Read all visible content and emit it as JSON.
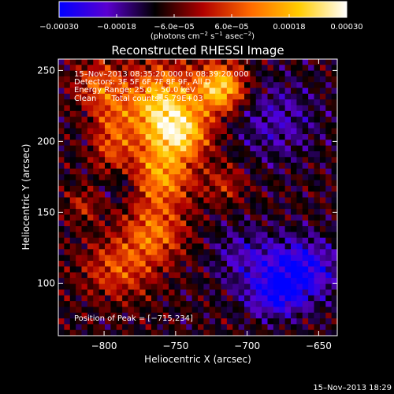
{
  "chart_data": {
    "type": "heatmap",
    "title": "Reconstructed RHESSI Image",
    "xlabel": "Heliocentric X (arcsec)",
    "ylabel": "Heliocentric Y (arcsec)",
    "xlim": [
      -832,
      -637
    ],
    "ylim": [
      63,
      258
    ],
    "x_ticks": [
      -800,
      -750,
      -700,
      -650
    ],
    "x_tick_labels": [
      "−800",
      "−750",
      "−700",
      "−650"
    ],
    "y_ticks": [
      100,
      150,
      200,
      250
    ],
    "y_tick_labels": [
      "100",
      "150",
      "200",
      "250"
    ],
    "colorbar": {
      "range": [
        -0.0003,
        0.0003
      ],
      "tick_values": [
        -0.0003,
        -0.00018,
        -6e-05,
        6e-05,
        0.00018,
        0.0003
      ],
      "tick_labels": [
        "−0.00030",
        "−0.00018",
        "−6.0e−05",
        "6.0e−05",
        "0.00018",
        "0.00030"
      ],
      "unit_text": "(photons cm",
      "unit_sup1": "−2",
      "unit_mid": " s",
      "unit_sup2": "−1",
      "unit_end": " asec",
      "unit_sup3": "−2",
      "unit_close": ")",
      "stops": [
        "#0000ff",
        "#5a00d0",
        "#000000",
        "#b00000",
        "#ff6a00",
        "#ffcc00",
        "#ffffff"
      ]
    },
    "annotations": [
      "15–Nov–2013 08:35:20.000 to 08:39:20.000",
      "Detectors: 3F 5F 6F 7F 8F 9F, All D",
      "Energy Range: 25.0 – 50.0 keV",
      "Clean      Total counts: 5.79E+03"
    ],
    "peak_label": "Position of Peak = [−715,234]",
    "peak": [
      -715,
      234
    ],
    "sources": [
      {
        "x": -760,
        "y": 225,
        "amp": 0.0003,
        "sx": 18,
        "sy": 20
      },
      {
        "x": -718,
        "y": 238,
        "amp": 0.0003,
        "sx": 12,
        "sy": 12
      },
      {
        "x": -745,
        "y": 205,
        "amp": 0.0002,
        "sx": 14,
        "sy": 12
      },
      {
        "x": -760,
        "y": 175,
        "amp": 0.00022,
        "sx": 16,
        "sy": 16
      },
      {
        "x": -795,
        "y": 200,
        "amp": 0.00014,
        "sx": 10,
        "sy": 25
      },
      {
        "x": -765,
        "y": 135,
        "amp": 0.00018,
        "sx": 15,
        "sy": 14
      },
      {
        "x": -790,
        "y": 110,
        "amp": 0.00015,
        "sx": 18,
        "sy": 15
      },
      {
        "x": -805,
        "y": 240,
        "amp": 0.00014,
        "sx": 12,
        "sy": 12
      },
      {
        "x": -715,
        "y": 170,
        "amp": 0.0001,
        "sx": 10,
        "sy": 10
      },
      {
        "x": -815,
        "y": 155,
        "amp": 0.0001,
        "sx": 8,
        "sy": 8
      },
      {
        "x": -665,
        "y": 110,
        "amp": -0.0002,
        "sx": 20,
        "sy": 15
      },
      {
        "x": -680,
        "y": 90,
        "amp": -0.00015,
        "sx": 15,
        "sy": 10
      },
      {
        "x": -790,
        "y": 170,
        "amp": -0.00012,
        "sx": 10,
        "sy": 10
      },
      {
        "x": -680,
        "y": 215,
        "amp": -0.0001,
        "sx": 20,
        "sy": 20
      },
      {
        "x": -705,
        "y": 120,
        "amp": -8e-05,
        "sx": 15,
        "sy": 15
      }
    ]
  },
  "footer": {
    "timestamp": "15–Nov–2013 18:29"
  }
}
